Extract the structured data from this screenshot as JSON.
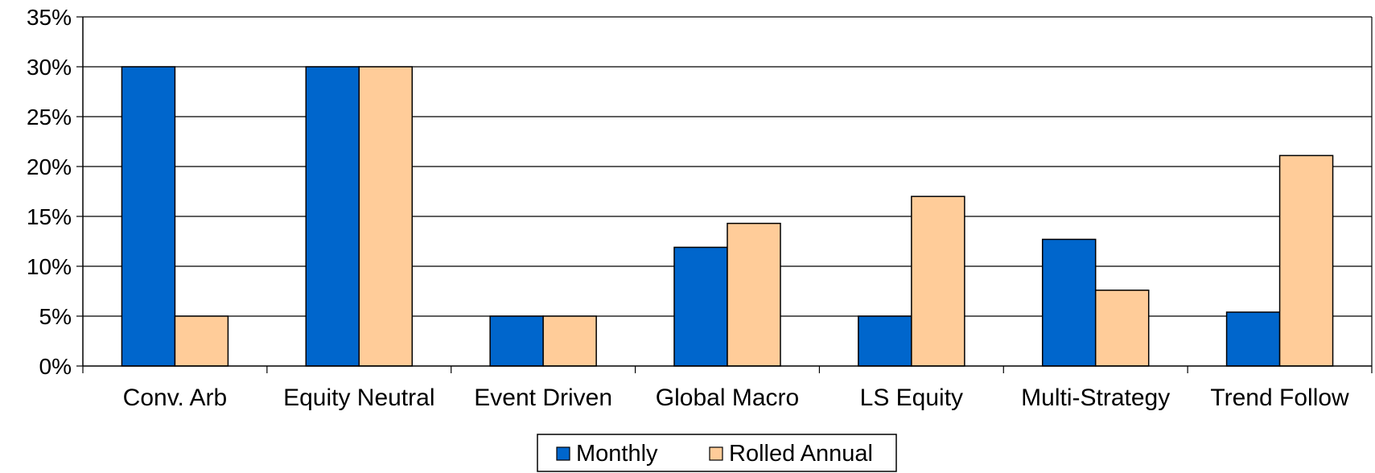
{
  "chart_data": {
    "type": "bar",
    "categories": [
      "Conv. Arb",
      "Equity Neutral",
      "Event Driven",
      "Global Macro",
      "LS Equity",
      "Multi-Strategy",
      "Trend Follow"
    ],
    "series": [
      {
        "name": "Monthly",
        "color": "#0066CC",
        "values": [
          30,
          30,
          5,
          11.9,
          5,
          12.7,
          5.4
        ]
      },
      {
        "name": "Rolled Annual",
        "color": "#FFCC99",
        "values": [
          5,
          30,
          5,
          14.3,
          17,
          7.6,
          21.1
        ]
      }
    ],
    "ylim": [
      0,
      35
    ],
    "yticks": [
      0,
      5,
      10,
      15,
      20,
      25,
      30,
      35
    ],
    "ytick_labels": [
      "0%",
      "5%",
      "10%",
      "15%",
      "20%",
      "25%",
      "30%",
      "35%"
    ],
    "title": "",
    "xlabel": "",
    "ylabel": "",
    "grid": true,
    "legend_position": "bottom-center"
  }
}
